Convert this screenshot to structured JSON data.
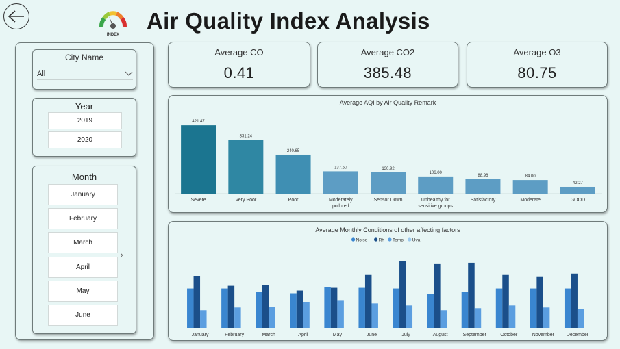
{
  "header": {
    "title": "Air Quality Index Analysis",
    "logo_text": "INDEX"
  },
  "slicers": {
    "city": {
      "label": "City Name",
      "value": "All"
    },
    "year": {
      "label": "Year",
      "options": [
        "2019",
        "2020"
      ]
    },
    "month": {
      "label": "Month",
      "options": [
        "January",
        "February",
        "March",
        "April",
        "May",
        "June"
      ]
    }
  },
  "kpis": [
    {
      "title": "Average CO",
      "value": "0.41"
    },
    {
      "title": "Average CO2",
      "value": "385.48"
    },
    {
      "title": "Average O3",
      "value": "80.75"
    }
  ],
  "chart_data": [
    {
      "type": "bar",
      "title": "Average AQI by Air Quality Remark",
      "categories": [
        "Severe",
        "Very Poor",
        "Poor",
        "Moderately polluted",
        "Sensor Down",
        "Unhealthy for sensitive groups",
        "Satisfactory",
        "Moderate",
        "GOOD"
      ],
      "values": [
        421.47,
        331.24,
        240.65,
        137.5,
        130.92,
        106.0,
        88.96,
        84.0,
        42.27
      ],
      "value_labels": [
        "421.47",
        "331.24",
        "240.65",
        "137.50",
        "130.92",
        "106.00",
        "88.96",
        "84.00",
        "42.27"
      ],
      "colors": [
        "#1b7590",
        "#2f87a3",
        "#3f8fb3",
        "#5d9dc4",
        "#5d9dc4",
        "#5d9dc4",
        "#5d9dc4",
        "#5d9dc4",
        "#5d9dc4"
      ],
      "ylim": [
        0,
        460
      ],
      "legend": "none",
      "grid": false
    },
    {
      "type": "bar",
      "title": "Average Monthly Conditions of other affecting factors",
      "categories": [
        "January",
        "February",
        "March",
        "April",
        "May",
        "June",
        "July",
        "August",
        "September",
        "October",
        "November",
        "December"
      ],
      "series": [
        {
          "name": "Noise",
          "color": "#3a86d0",
          "values": [
            59,
            59,
            54,
            52,
            61,
            60,
            59,
            51,
            54,
            59,
            59,
            59
          ]
        },
        {
          "name": "Rh",
          "color": "#1b4f8a",
          "values": [
            77,
            63,
            64,
            56,
            60,
            79,
            99,
            95,
            97,
            79,
            76,
            81
          ]
        },
        {
          "name": "Temp",
          "color": "#5b9ee0",
          "values": [
            27,
            31,
            32,
            39,
            41,
            37,
            34,
            27,
            30,
            34,
            31,
            29
          ]
        },
        {
          "name": "Uva",
          "color": "#9cc9ef",
          "values": [
            0,
            0,
            0,
            0,
            0,
            0,
            0,
            0,
            0,
            0,
            0,
            0
          ]
        }
      ],
      "ylim": [
        0,
        105
      ],
      "legend": "top-center",
      "grid": false
    }
  ]
}
